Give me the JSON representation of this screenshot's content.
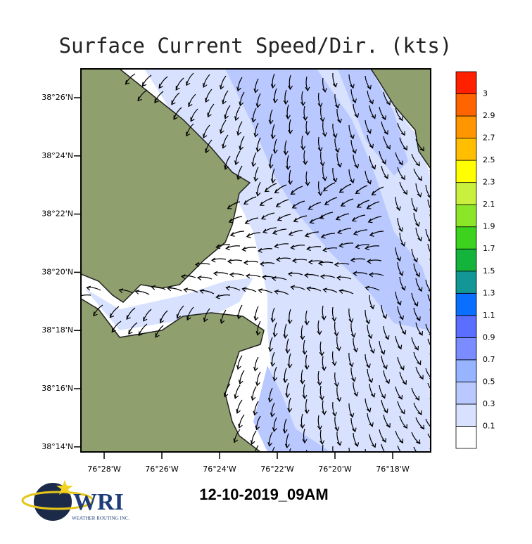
{
  "title": "Surface Current Speed/Dir. (kts)",
  "latitude_labels": [
    "38°26'N",
    "38°24'N",
    "38°22'N",
    "38°20'N",
    "38°18'N",
    "38°16'N",
    "38°14'N"
  ],
  "longitude_labels": [
    "76°28'W",
    "76°26'W",
    "76°24'W",
    "76°22'W",
    "76°20'W",
    "76°18'W"
  ],
  "colorbar": {
    "levels": [
      0.1,
      0.3,
      0.5,
      0.7,
      0.9,
      1.1,
      1.3,
      1.5,
      1.7,
      1.9,
      2.1,
      2.3,
      2.5,
      2.7,
      2.9,
      3
    ],
    "colors": [
      "#ffffff",
      "#d8e2ff",
      "#b9c8ff",
      "#96b4ff",
      "#7a8cff",
      "#5a6eff",
      "#0a6eff",
      "#129696",
      "#14b43c",
      "#3cd21e",
      "#8ce628",
      "#c8f03c",
      "#ffff00",
      "#ffbe00",
      "#ff9600",
      "#ff6400",
      "#ff2000"
    ]
  },
  "timestamp": "12-10-2019_09AM",
  "logo": {
    "name": "WRI",
    "tagline": "WEATHER ROUTING INC."
  }
}
